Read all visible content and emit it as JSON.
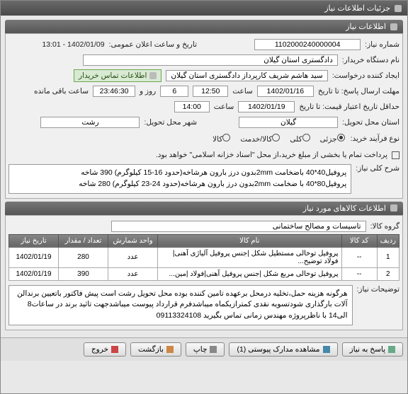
{
  "window": {
    "title": "جزئیات اطلاعات نیاز"
  },
  "section1": {
    "header": "اطلاعات نیاز",
    "need_number_label": "شماره نیاز:",
    "need_number": "1102000240000004",
    "announce_label": "تاریخ و ساعت اعلان عمومی:",
    "announce_value": "1402/01/09 - 13:01",
    "buyer_label": "نام دستگاه خریدار:",
    "buyer_value": "دادگستری استان گیلان",
    "requester_label": "ایجاد کننده درخواست:",
    "requester_value": "سید هاشم شریف کارپرداز دادگستری استان گیلان",
    "contact_note": "اطلاعات تماس خریدار",
    "deadline_label": "مهلت ارسال پاسخ: تا تاریخ",
    "deadline_date": "1402/01/16",
    "deadline_time_label": "ساعت",
    "deadline_time": "12:50",
    "days_label": "روز و",
    "days_value": "6",
    "remaining_time": "23:46:30",
    "remaining_label": "ساعت باقی مانده",
    "validity_label": "حداقل تاریخ اعتبار قیمت: تا تاریخ",
    "validity_date": "1402/01/19",
    "validity_time_label": "ساعت",
    "validity_time": "14:00",
    "province_label": "استان محل تحویل:",
    "province_value": "گیلان",
    "city_label": "شهر محل تحویل:",
    "city_value": "رشت",
    "buy_type_label": "نوع فرآیند خرید:",
    "buy_types": {
      "part": "جزئی",
      "group": "کلی",
      "service": "کالا/خدمت",
      "goods": "کالا"
    },
    "buy_selected": "part",
    "payment_prefix_label": "",
    "payment_note": "پرداخت تمام یا بخشی از مبلغ خرید،از محل \"اسناد خزانه اسلامی\" خواهد بود.",
    "overview_label": "شرح کلی نیاز:",
    "overview_text": "پروفیل40*40 باضخامت 2mmبدون درز بارون هرشاخه(حدود 16-15 کیلوگرم) 390 شاخه\nپروفیل80*40 با ضخامت 2mmبدون درز بارون هرشاخه(حدود 24-23 کیلوگرم) 280 شاخه"
  },
  "section2": {
    "header": "اطلاعات کالاهای مورد نیاز",
    "group_label": "گروه کالا:",
    "group_value": "تاسیسات و مصالح ساختمانی",
    "columns": [
      "ردیف",
      "کد کالا",
      "نام کالا",
      "واحد شمارش",
      "تعداد / مقدار",
      "تاریخ نیاز"
    ],
    "rows": [
      [
        "1",
        "--",
        "پروفیل توخالی مستطیل شکل |جنس پروفیل آلیاژی آهنی|فولاد توضیح...",
        "عدد",
        "280",
        "1402/01/19"
      ],
      [
        "2",
        "--",
        "پروفیل توخالی مربع شکل |جنس پروفیل آهنی|فولاد |مین...",
        "عدد",
        "390",
        "1402/01/19"
      ]
    ],
    "desc_label": "توضیحات نیاز:",
    "desc_text": "هرگونه هزینه حمل،تخلیه درمحل برعهده تامین کننده بوده محل تحویل رشت است پیش فاکتور باتعیین برندالن آلات بارگذاری شودتسویه نقدی کمترازیکماه میباشدفرم قرارداد پیوست میباشدجهت تاثید برند در ساعات8 الی14 با ناظرپروژه مهندس زمانی تماس بگیرید 09113324108"
  },
  "buttons": {
    "reply": "پاسخ به نیاز",
    "attachments": "مشاهده مدارک پیوستی (1)",
    "print": "چاپ",
    "back": "بازگشت",
    "exit": "خروج"
  },
  "colors": {
    "header_bg": "#5a5a5a",
    "note_bg": "#d9ead3",
    "note_border": "#6aa84f"
  }
}
